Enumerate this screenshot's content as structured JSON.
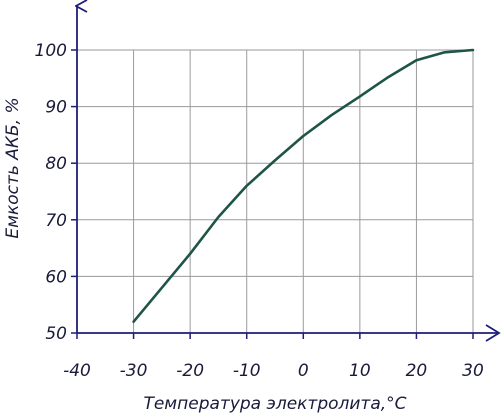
{
  "chart_data": {
    "type": "line",
    "xlabel": "Температура электролита,°С",
    "ylabel": "Емкость АКБ, %",
    "xlim": [
      -40,
      30
    ],
    "ylim": [
      50,
      100
    ],
    "x_ticks": [
      "-40",
      "-30",
      "-20",
      "-10",
      "0",
      "10",
      "20",
      "30"
    ],
    "y_ticks": [
      "50",
      "60",
      "70",
      "80",
      "90",
      "100"
    ],
    "grid": true,
    "series": [
      {
        "x": [
          -30,
          -25,
          -20,
          -15,
          -10,
          -5,
          0,
          5,
          10,
          15,
          20,
          25,
          30
        ],
        "y": [
          52,
          58,
          64,
          70.5,
          76,
          80.5,
          84.8,
          88.5,
          91.8,
          95.2,
          98.2,
          99.6,
          100
        ]
      }
    ],
    "colors": {
      "line": "#1f5448",
      "axes": "#1d1d7a",
      "grid": "#9a9a9a"
    }
  }
}
